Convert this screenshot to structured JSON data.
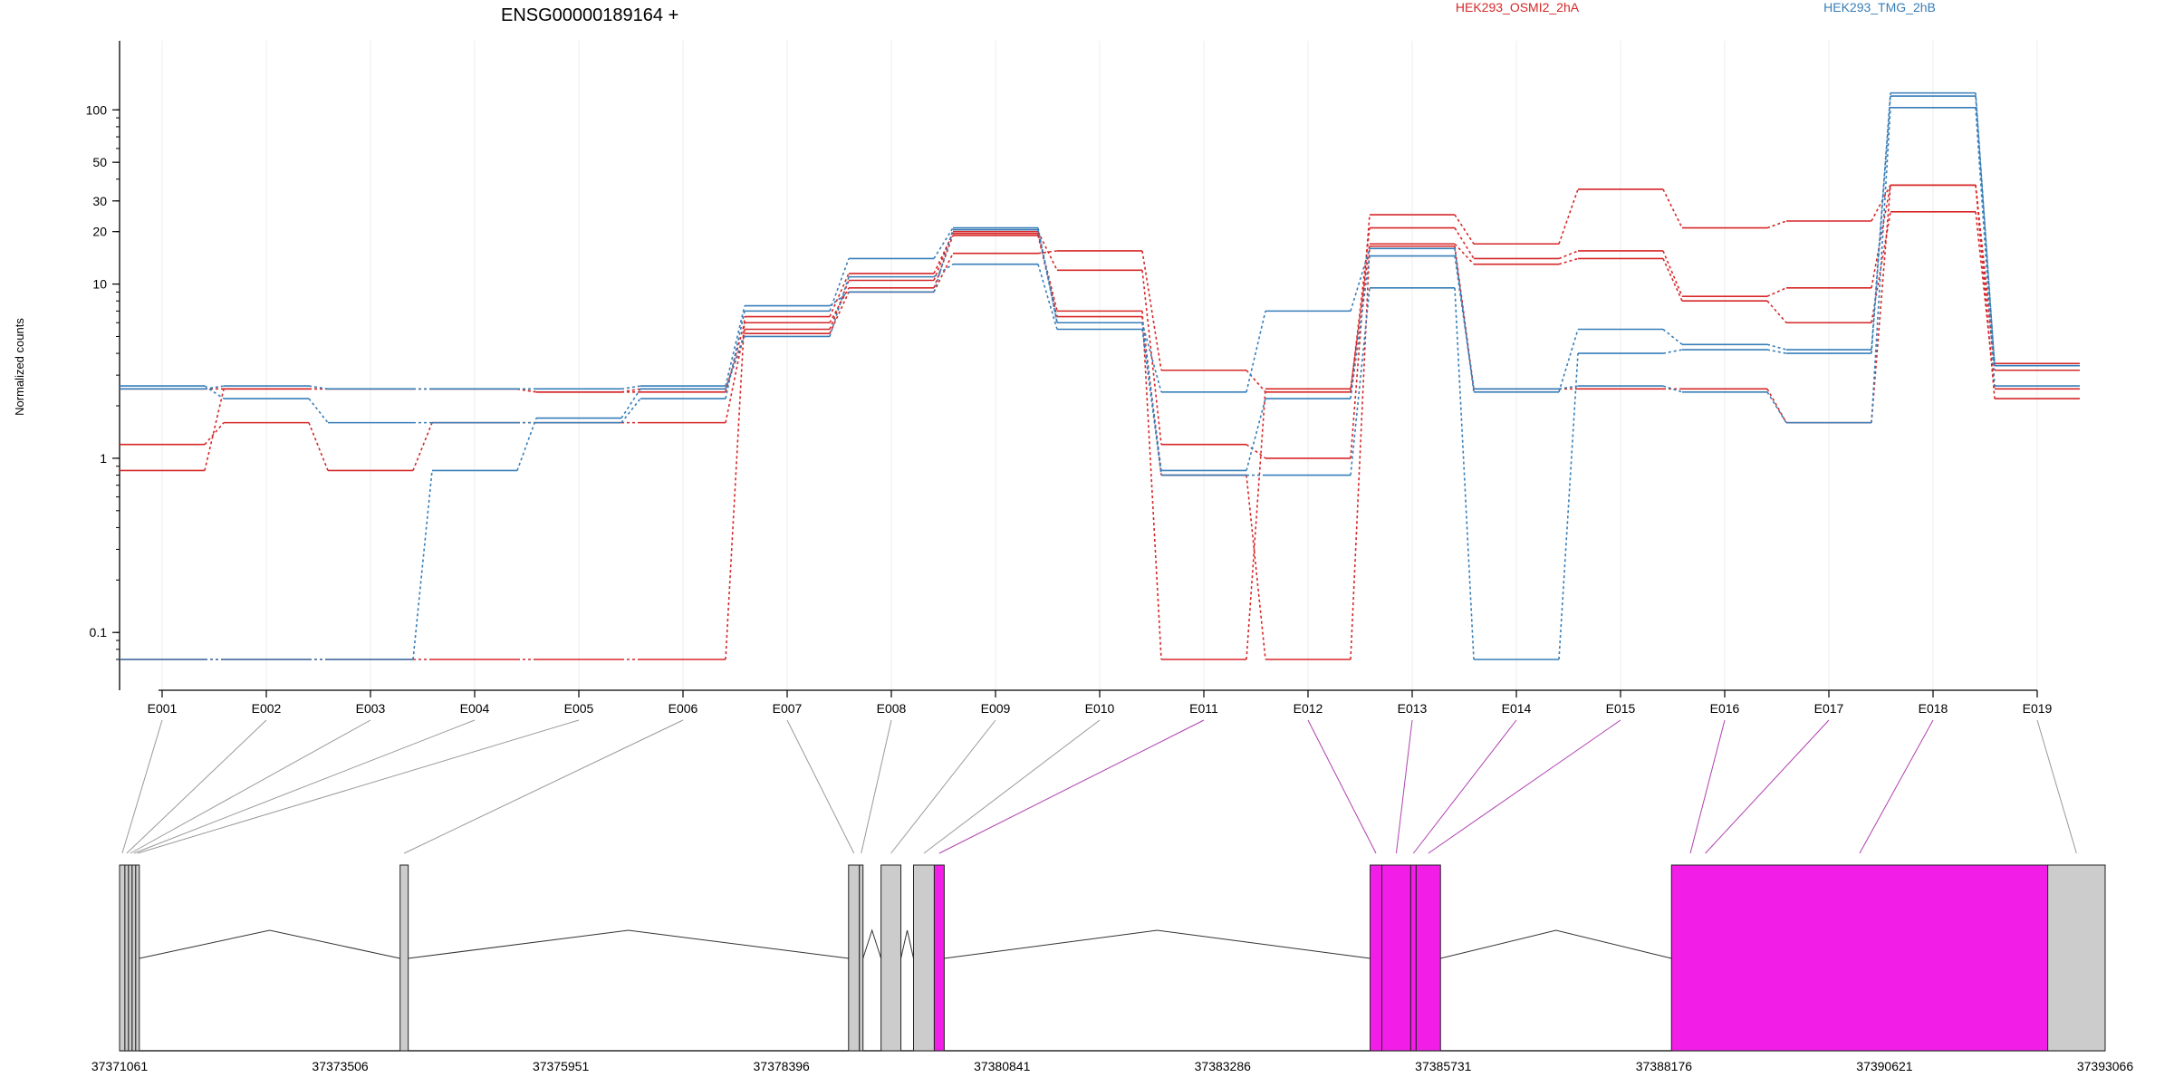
{
  "chart_data": {
    "type": "line",
    "title": "ENSG00000189164 +",
    "xlabel": "",
    "ylabel": "Normalized counts",
    "yscale": "log",
    "ylim": [
      0.07,
      160
    ],
    "yticks": [
      0.1,
      1,
      10,
      20,
      30,
      50,
      100
    ],
    "ytick_labels": [
      "0.1",
      "1",
      "10",
      "20",
      "30",
      "50",
      "100"
    ],
    "grid": true,
    "legend_position": "top",
    "categories": [
      "E001",
      "E002",
      "E003",
      "E004",
      "E005",
      "E006",
      "E007",
      "E008",
      "E009",
      "E010",
      "E011",
      "E012",
      "E013",
      "E014",
      "E015",
      "E016",
      "E017",
      "E018",
      "E019"
    ],
    "groups": [
      {
        "name": "HEK293_OSMI2_2hA",
        "color": "#d62728"
      },
      {
        "name": "HEK293_TMG_2hB",
        "color": "#377eb8"
      }
    ],
    "series": [
      {
        "group": 0,
        "values": [
          1.2,
          1.6,
          0.85,
          1.6,
          1.6,
          1.6,
          5.5,
          10.5,
          20.0,
          12.0,
          1.2,
          1.0,
          25.0,
          17.0,
          35.0,
          21.0,
          23.0,
          37.0,
          3.5
        ]
      },
      {
        "group": 0,
        "values": [
          0.85,
          2.5,
          2.5,
          2.5,
          2.4,
          2.5,
          5.2,
          9.0,
          15.0,
          15.5,
          3.2,
          2.4,
          21.0,
          14.0,
          15.5,
          8.5,
          9.5,
          37.0,
          3.2
        ]
      },
      {
        "group": 0,
        "values": [
          0.07,
          0.07,
          0.07,
          0.07,
          0.07,
          0.07,
          6.5,
          11.5,
          19.5,
          7.0,
          0.07,
          2.5,
          17.0,
          13.0,
          14.0,
          8.0,
          6.0,
          26.0,
          2.5
        ]
      },
      {
        "group": 0,
        "values": [
          2.5,
          2.5,
          2.5,
          2.5,
          2.4,
          2.4,
          6.0,
          9.5,
          19.0,
          6.5,
          0.8,
          0.07,
          16.5,
          2.5,
          2.5,
          2.5,
          1.6,
          37.0,
          2.2
        ]
      },
      {
        "group": 1,
        "values": [
          2.6,
          2.2,
          1.6,
          1.6,
          1.6,
          2.2,
          7.0,
          14.0,
          21.0,
          6.0,
          2.4,
          7.0,
          16.0,
          2.4,
          5.5,
          4.5,
          4.2,
          125.0,
          3.4
        ]
      },
      {
        "group": 1,
        "values": [
          0.07,
          0.07,
          0.07,
          0.85,
          1.7,
          2.5,
          5.0,
          11.0,
          13.0,
          5.5,
          0.8,
          0.8,
          9.5,
          0.07,
          4.0,
          4.2,
          4.0,
          120.0,
          3.4
        ]
      },
      {
        "group": 1,
        "values": [
          2.5,
          2.6,
          2.5,
          2.5,
          2.5,
          2.6,
          7.5,
          9.0,
          20.5,
          6.0,
          0.85,
          2.2,
          14.5,
          2.5,
          2.6,
          2.4,
          1.6,
          103.0,
          2.6
        ]
      }
    ],
    "gene_model": {
      "coordinate_labels": [
        "37371061",
        "37373506",
        "37375951",
        "37378396",
        "37380841",
        "37383286",
        "37385731",
        "37388176",
        "37390621",
        "37393066"
      ],
      "coordinate_start": 37371061,
      "coordinate_end": 37393066,
      "exon_fill_default": "#cccccc",
      "exon_fill_highlight": "#f21ee8",
      "line_default": "#999999",
      "line_highlight": "#b040b0",
      "exons": [
        {
          "start": 37371061,
          "end": 37371120,
          "highlight": false
        },
        {
          "start": 37371120,
          "end": 37371160,
          "highlight": false
        },
        {
          "start": 37371160,
          "end": 37371200,
          "highlight": false
        },
        {
          "start": 37371200,
          "end": 37371240,
          "highlight": false
        },
        {
          "start": 37371240,
          "end": 37371280,
          "highlight": false
        },
        {
          "start": 37374170,
          "end": 37374260,
          "highlight": false
        },
        {
          "start": 37379140,
          "end": 37379260,
          "highlight": false
        },
        {
          "start": 37379260,
          "end": 37379300,
          "highlight": false
        },
        {
          "start": 37379500,
          "end": 37379720,
          "highlight": false
        },
        {
          "start": 37379860,
          "end": 37380090,
          "highlight": false
        },
        {
          "start": 37380090,
          "end": 37380200,
          "highlight": true
        },
        {
          "start": 37384920,
          "end": 37385050,
          "highlight": true
        },
        {
          "start": 37385050,
          "end": 37385370,
          "highlight": true
        },
        {
          "start": 37385370,
          "end": 37385430,
          "highlight": true
        },
        {
          "start": 37385430,
          "end": 37385700,
          "highlight": true
        },
        {
          "start": 37388260,
          "end": 37392430,
          "highlight": true
        },
        {
          "start": 37392430,
          "end": 37393066,
          "highlight": false
        }
      ],
      "exon_links": [
        0,
        1,
        2,
        3,
        4,
        5,
        6,
        7,
        8,
        9,
        10,
        11,
        12,
        13,
        14,
        15,
        15,
        15,
        16
      ]
    }
  }
}
